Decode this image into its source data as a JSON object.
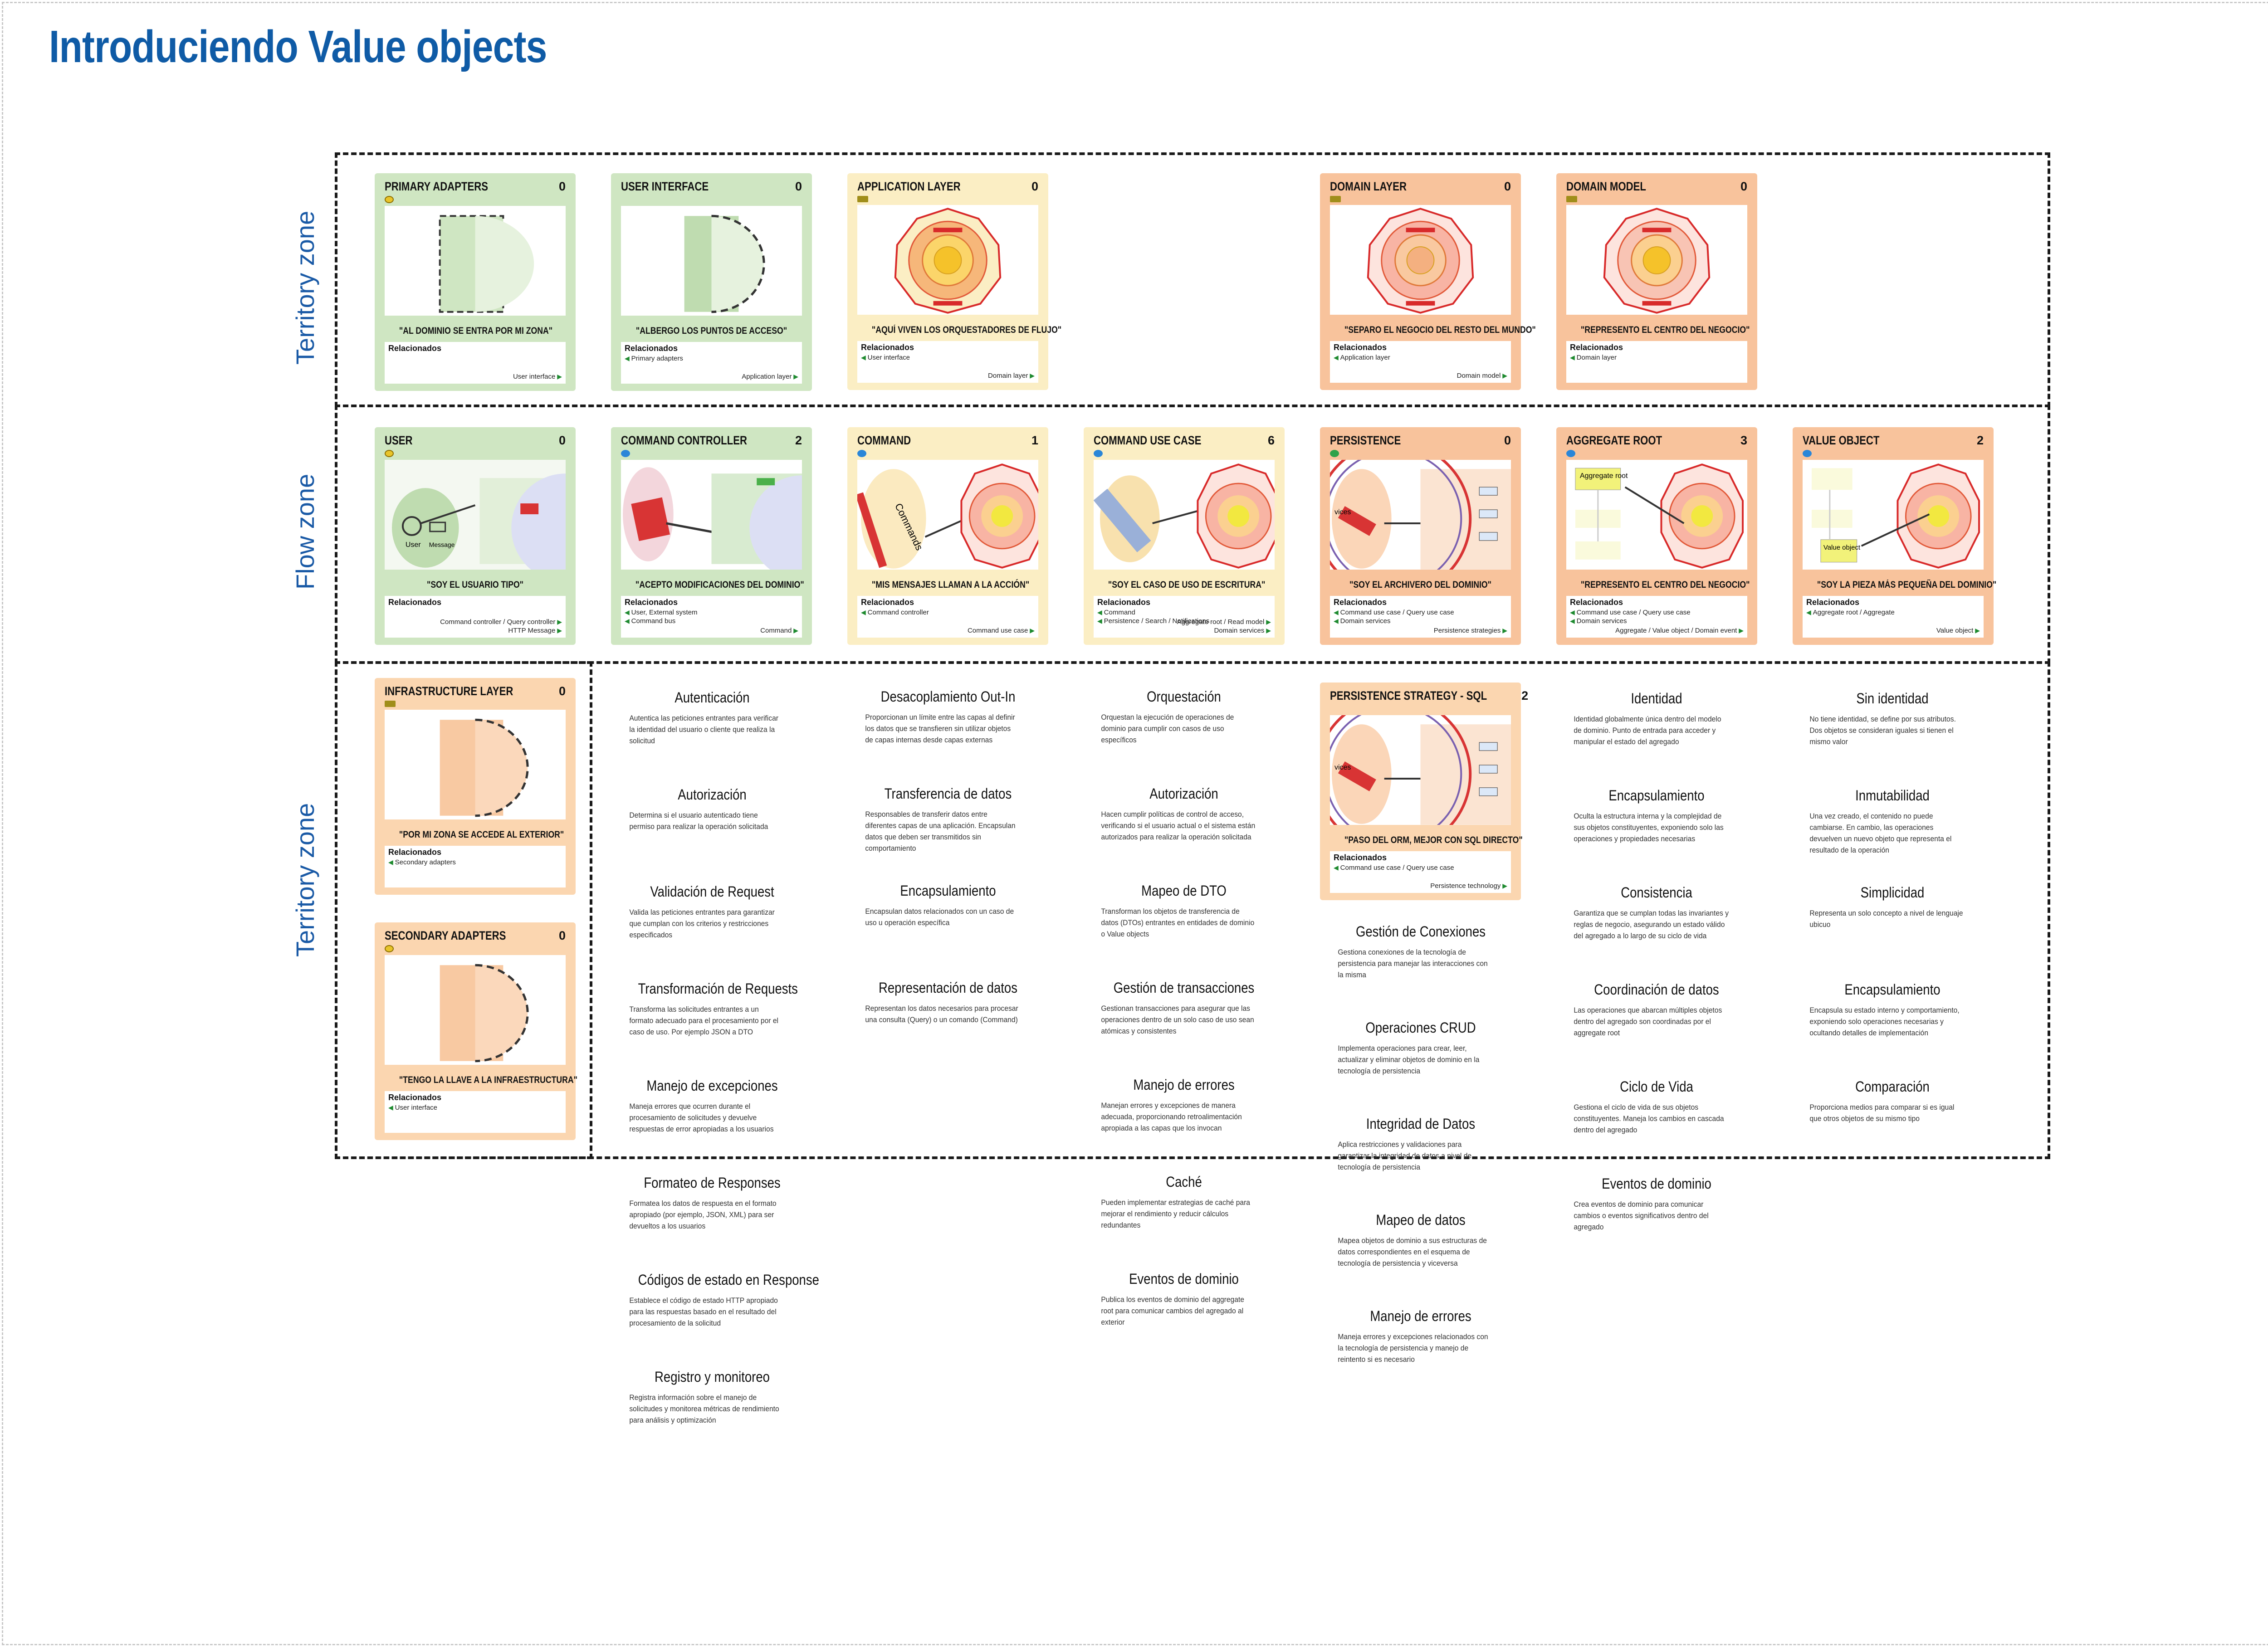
{
  "title": "Introduciendo Value objects",
  "zones": {
    "top": "Territory zone",
    "middle": "Flow zone",
    "bottom": "Territory zone"
  },
  "cards": [
    {
      "id": "primary-adapters",
      "name": "PRIMARY ADAPTERS",
      "count": "0",
      "quote": "\"AL DOMINIO SE ENTRA POR MI ZONA\"",
      "rel_title": "Relacionados",
      "left": [],
      "right": [
        "User interface"
      ]
    },
    {
      "id": "user-interface",
      "name": "USER INTERFACE",
      "count": "0",
      "quote": "\"ALBERGO LOS PUNTOS DE ACCESO\"",
      "rel_title": "Relacionados",
      "left": [
        "Primary adapters"
      ],
      "right": [
        "Application layer"
      ]
    },
    {
      "id": "application-layer",
      "name": "APPLICATION LAYER",
      "count": "0",
      "quote": "\"AQUÍ VIVEN LOS ORQUESTADORES DE FLUJO\"",
      "rel_title": "Relacionados",
      "left": [
        "User interface"
      ],
      "right": [
        "Domain layer"
      ]
    },
    {
      "id": "domain-layer",
      "name": "DOMAIN LAYER",
      "count": "0",
      "quote": "\"SEPARO EL NEGOCIO DEL RESTO DEL MUNDO\"",
      "rel_title": "Relacionados",
      "left": [
        "Application layer"
      ],
      "right": [
        "Domain model"
      ]
    },
    {
      "id": "domain-model",
      "name": "DOMAIN MODEL",
      "count": "0",
      "quote": "\"REPRESENTO EL CENTRO DEL NEGOCIO\"",
      "rel_title": "Relacionados",
      "left": [
        "Domain layer"
      ],
      "right": []
    },
    {
      "id": "user",
      "name": "USER",
      "count": "0",
      "quote": "\"SOY EL USUARIO TIPO\"",
      "rel_title": "Relacionados",
      "left": [],
      "right": [
        "Command controller / Query controller",
        "HTTP Message"
      ]
    },
    {
      "id": "command-controller",
      "name": "COMMAND CONTROLLER",
      "count": "2",
      "quote": "\"ACEPTO MODIFICACIONES DEL DOMINIO\"",
      "rel_title": "Relacionados",
      "left": [
        "User, External system",
        "Command bus"
      ],
      "right": [
        "Command"
      ]
    },
    {
      "id": "command",
      "name": "COMMAND",
      "count": "1",
      "quote": "\"MIS MENSAJES LLAMAN A LA ACCIÓN\"",
      "rel_title": "Relacionados",
      "left": [
        "Command controller"
      ],
      "right": [
        "Command use case"
      ]
    },
    {
      "id": "command-use-case",
      "name": "COMMAND USE CASE",
      "count": "6",
      "quote": "\"SOY EL CASO DE USO DE ESCRITURA\"",
      "rel_title": "Relacionados",
      "left": [
        "Command",
        "Persistence / Search / Notifications"
      ],
      "right": [
        "Aggregate root / Read model",
        "Domain services"
      ]
    },
    {
      "id": "persistence",
      "name": "PERSISTENCE",
      "count": "0",
      "quote": "\"SOY EL ARCHIVERO DEL DOMINIO\"",
      "rel_title": "Relacionados",
      "left": [
        "Command use case / Query use case",
        "Domain services"
      ],
      "right": [
        "Persistence strategies"
      ]
    },
    {
      "id": "aggregate-root",
      "name": "AGGREGATE ROOT",
      "count": "3",
      "quote": "\"REPRESENTO EL CENTRO DEL NEGOCIO\"",
      "rel_title": "Relacionados",
      "left": [
        "Command use case / Query use case",
        "Domain services"
      ],
      "right": [
        "Aggregate / Value object / Domain event"
      ]
    },
    {
      "id": "value-object",
      "name": "VALUE OBJECT",
      "count": "2",
      "quote": "\"SOY LA PIEZA MÁS PEQUEÑA DEL DOMINIO\"",
      "rel_title": "Relacionados",
      "left": [
        "Aggregate root / Aggregate"
      ],
      "right": [
        "Value object"
      ]
    },
    {
      "id": "infrastructure-layer",
      "name": "INFRASTRUCTURE LAYER",
      "count": "0",
      "quote": "\"POR MI ZONA SE ACCEDE AL EXTERIOR\"",
      "rel_title": "Relacionados",
      "left": [
        "Secondary adapters"
      ],
      "right": []
    },
    {
      "id": "secondary-adapters",
      "name": "SECONDARY ADAPTERS",
      "count": "0",
      "quote": "\"TENGO LA LLAVE A LA INFRAESTRUCTURA\"",
      "rel_title": "Relacionados",
      "left": [
        "User interface"
      ],
      "right": []
    },
    {
      "id": "persistence-strategy-sql",
      "name": "PERSISTENCE STRATEGY - SQL",
      "count": "2",
      "quote": "\"PASO DEL ORM, MEJOR CON SQL DIRECTO\"",
      "rel_title": "Relacionados",
      "left": [
        "Command use case / Query use case"
      ],
      "right": [
        "Persistence technology"
      ]
    }
  ],
  "art_labels": {
    "user_label": "User",
    "message_label": "Message",
    "commands_label": "Commands",
    "aggregate_root_label": "Aggregate root",
    "value_object_label": "Value object",
    "vices_label": "vices"
  },
  "columns": {
    "col1": [
      {
        "title": "Autenticación",
        "text": "Autentica las peticiones entrantes para verificar la identidad del usuario o cliente que realiza la solicitud"
      },
      {
        "title": "Autorización",
        "text": "Determina si el usuario autenticado tiene permiso para realizar la operación solicitada"
      },
      {
        "title": "Validación de Request",
        "text": "Valida las peticiones entrantes para garantizar que cumplan con los criterios y restricciones especificados"
      },
      {
        "title": "Transformación de Requests",
        "text": "Transforma las solicitudes entrantes a un formato adecuado para el procesamiento por el caso de uso. Por ejemplo JSON a DTO"
      },
      {
        "title": "Manejo de excepciones",
        "text": "Maneja errores que ocurren durante el procesamiento de solicitudes y devuelve respuestas de error apropiadas a los usuarios"
      },
      {
        "title": "Formateo de Responses",
        "text": "Formatea los datos de respuesta en el formato apropiado (por ejemplo, JSON, XML) para ser devueltos a los usuarios"
      },
      {
        "title": "Códigos de estado en Response",
        "text": "Establece el código de estado HTTP apropiado para las respuestas basado en el resultado del procesamiento de la solicitud"
      },
      {
        "title": "Registro y monitoreo",
        "text": "Registra información sobre el manejo de solicitudes y monitorea métricas de rendimiento para análisis y optimización"
      }
    ],
    "col2": [
      {
        "title": "Desacoplamiento Out-In",
        "text": "Proporcionan un límite entre las capas al definir los datos que se transfieren sin utilizar objetos de capas internas desde capas externas"
      },
      {
        "title": "Transferencia de datos",
        "text": "Responsables de transferir datos entre diferentes capas de una aplicación. Encapsulan datos que deben ser transmitidos sin comportamiento"
      },
      {
        "title": "Encapsulamiento",
        "text": "Encapsulan datos relacionados con un caso de uso u operación específica"
      },
      {
        "title": "Representación de datos",
        "text": "Representan los datos necesarios para procesar una consulta (Query) o un comando (Command)"
      }
    ],
    "col3": [
      {
        "title": "Orquestación",
        "text": "Orquestan la ejecución de operaciones de dominio para cumplir con casos de uso específicos"
      },
      {
        "title": "Autorización",
        "text": "Hacen cumplir políticas de control de acceso, verificando si el usuario actual o el sistema están autorizados para realizar la operación solicitada"
      },
      {
        "title": "Mapeo de DTO",
        "text": "Transforman los objetos de transferencia de datos (DTOs) entrantes en entidades de dominio o Value objects"
      },
      {
        "title": "Gestión de transacciones",
        "text": "Gestionan transacciones para asegurar que las operaciones dentro de un solo caso de uso sean atómicas y consistentes"
      },
      {
        "title": "Manejo de errores",
        "text": "Manejan errores y excepciones de manera adecuada, proporcionando retroalimentación apropiada a las capas que los invocan"
      },
      {
        "title": "Caché",
        "text": "Pueden implementar estrategias de caché para mejorar el rendimiento y reducir cálculos redundantes"
      },
      {
        "title": "Eventos de dominio",
        "text": "Publica los eventos de dominio del aggregate root para comunicar cambios del agregado al exterior"
      }
    ],
    "col4": [
      {
        "title": "Gestión de Conexiones",
        "text": "Gestiona conexiones de la tecnología de persistencia para manejar las interacciones con la misma"
      },
      {
        "title": "Operaciones CRUD",
        "text": "Implementa operaciones para crear, leer, actualizar y eliminar objetos de dominio en la tecnología de persistencia"
      },
      {
        "title": "Integridad de Datos",
        "text": "Aplica restricciones y validaciones para garantizar la integridad de datos a nivel de tecnología de persistencia"
      },
      {
        "title": "Mapeo de datos",
        "text": "Mapea objetos de dominio a sus estructuras de datos correspondientes en el esquema de tecnología de persistencia y viceversa"
      },
      {
        "title": "Manejo de errores",
        "text": "Maneja errores y excepciones relacionados con la tecnología de persistencia y manejo de reintento si es necesario"
      }
    ],
    "col5": [
      {
        "title": "Identidad",
        "text": "Identidad globalmente única dentro del modelo de dominio. Punto de entrada para acceder y manipular el estado del agregado"
      },
      {
        "title": "Encapsulamiento",
        "text": "Oculta la estructura interna y la complejidad de sus objetos constituyentes, exponiendo solo las operaciones y propiedades necesarias"
      },
      {
        "title": "Consistencia",
        "text": "Garantiza que se cumplan todas las invariantes y reglas de negocio, asegurando un estado válido del agregado a lo largo de su ciclo de vida"
      },
      {
        "title": "Coordinación de datos",
        "text": "Las operaciones que abarcan múltiples objetos dentro del agregado son coordinadas por el aggregate root"
      },
      {
        "title": "Ciclo de Vida",
        "text": "Gestiona el ciclo de vida de sus objetos constituyentes. Maneja los cambios en cascada dentro del agregado"
      },
      {
        "title": "Eventos de dominio",
        "text": "Crea eventos de dominio para comunicar cambios o eventos significativos dentro del agregado"
      }
    ],
    "col6": [
      {
        "title": "Sin identidad",
        "text": "No tiene identidad, se define por sus atributos. Dos objetos se consideran iguales si tienen el mismo valor"
      },
      {
        "title": "Inmutabilidad",
        "text": "Una vez creado, el contenido no puede cambiarse. En cambio, las operaciones devuelven un nuevo objeto que representa el resultado de la operación"
      },
      {
        "title": "Simplicidad",
        "text": "Representa un solo concepto a nivel de lenguaje ubicuo"
      },
      {
        "title": "Encapsulamiento",
        "text": "Encapsula su estado interno y comportamiento, exponiendo solo operaciones necesarias y ocultando detalles de implementación"
      },
      {
        "title": "Comparación",
        "text": "Proporciona medios para comparar si es igual que otros objetos de su mismo tipo"
      }
    ]
  },
  "colors": {
    "title": "#0f5ba6",
    "zone_label": "#1a5aa6",
    "green_card": "#cfe6c2",
    "yellow_card": "#fbeec4",
    "orange_card": "#f8c39c"
  }
}
